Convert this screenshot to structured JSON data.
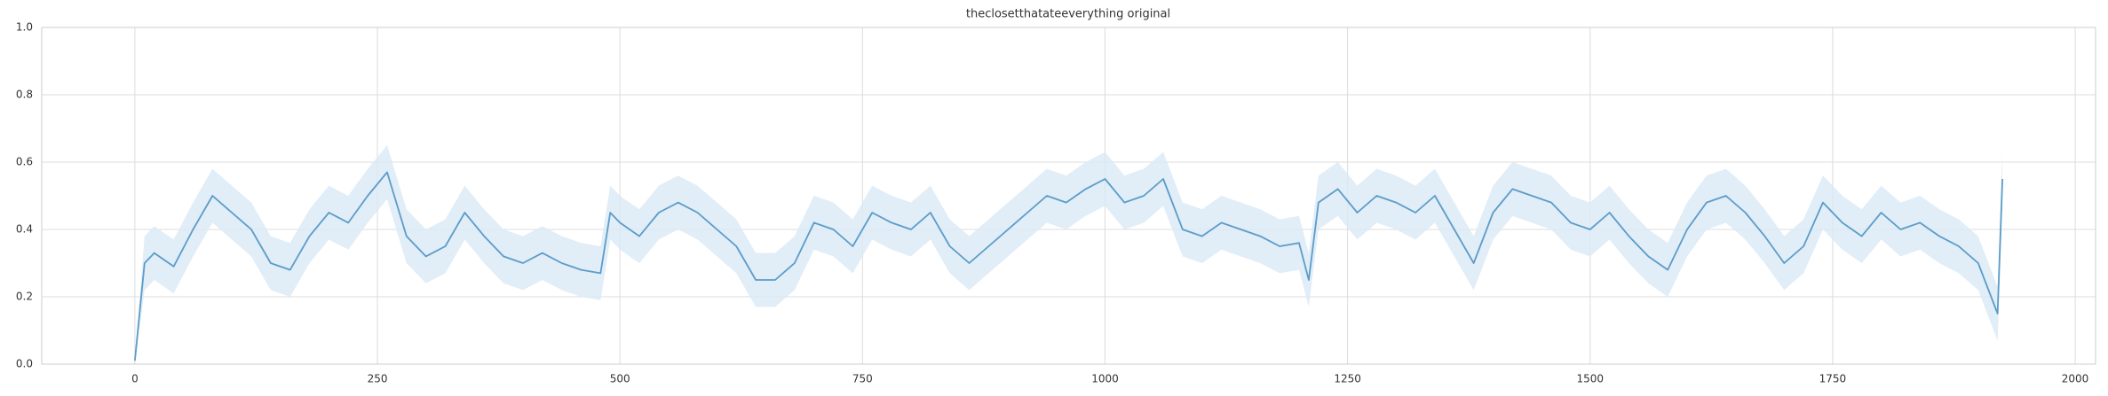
{
  "chart_data": {
    "type": "line",
    "title": "theclosetthatateeverything original",
    "x": [
      0,
      10,
      20,
      40,
      60,
      80,
      100,
      120,
      140,
      160,
      180,
      200,
      220,
      240,
      260,
      280,
      300,
      320,
      340,
      360,
      380,
      400,
      420,
      440,
      460,
      480,
      490,
      500,
      520,
      540,
      560,
      580,
      600,
      620,
      640,
      660,
      680,
      700,
      720,
      740,
      760,
      780,
      800,
      820,
      840,
      860,
      880,
      900,
      920,
      940,
      960,
      980,
      1000,
      1020,
      1040,
      1060,
      1080,
      1100,
      1120,
      1140,
      1160,
      1180,
      1200,
      1210,
      1220,
      1240,
      1260,
      1280,
      1300,
      1320,
      1340,
      1360,
      1380,
      1400,
      1420,
      1440,
      1460,
      1480,
      1500,
      1520,
      1540,
      1560,
      1580,
      1600,
      1620,
      1640,
      1660,
      1680,
      1700,
      1720,
      1740,
      1760,
      1780,
      1800,
      1820,
      1840,
      1860,
      1880,
      1900,
      1920,
      1925
    ],
    "series": [
      {
        "color": "#5b9cc9",
        "band_color": "#d9e8f5",
        "values": [
          0.01,
          0.3,
          0.33,
          0.29,
          0.4,
          0.5,
          0.45,
          0.4,
          0.3,
          0.28,
          0.38,
          0.45,
          0.42,
          0.5,
          0.57,
          0.38,
          0.32,
          0.35,
          0.45,
          0.38,
          0.32,
          0.3,
          0.33,
          0.3,
          0.28,
          0.27,
          0.45,
          0.42,
          0.38,
          0.45,
          0.48,
          0.45,
          0.4,
          0.35,
          0.25,
          0.25,
          0.3,
          0.42,
          0.4,
          0.35,
          0.45,
          0.42,
          0.4,
          0.45,
          0.35,
          0.3,
          0.35,
          0.4,
          0.45,
          0.5,
          0.48,
          0.52,
          0.55,
          0.48,
          0.5,
          0.55,
          0.4,
          0.38,
          0.42,
          0.4,
          0.38,
          0.35,
          0.36,
          0.25,
          0.48,
          0.52,
          0.45,
          0.5,
          0.48,
          0.45,
          0.5,
          0.4,
          0.3,
          0.45,
          0.52,
          0.5,
          0.48,
          0.42,
          0.4,
          0.45,
          0.38,
          0.32,
          0.28,
          0.4,
          0.48,
          0.5,
          0.45,
          0.38,
          0.3,
          0.35,
          0.48,
          0.42,
          0.38,
          0.45,
          0.4,
          0.42,
          0.38,
          0.35,
          0.3,
          0.15,
          0.55
        ],
        "lower": [
          0.0,
          0.22,
          0.25,
          0.21,
          0.32,
          0.42,
          0.37,
          0.32,
          0.22,
          0.2,
          0.3,
          0.37,
          0.34,
          0.42,
          0.49,
          0.3,
          0.24,
          0.27,
          0.37,
          0.3,
          0.24,
          0.22,
          0.25,
          0.22,
          0.2,
          0.19,
          0.37,
          0.34,
          0.3,
          0.37,
          0.4,
          0.37,
          0.32,
          0.27,
          0.17,
          0.17,
          0.22,
          0.34,
          0.32,
          0.27,
          0.37,
          0.34,
          0.32,
          0.37,
          0.27,
          0.22,
          0.27,
          0.32,
          0.37,
          0.42,
          0.4,
          0.44,
          0.47,
          0.4,
          0.42,
          0.47,
          0.32,
          0.3,
          0.34,
          0.32,
          0.3,
          0.27,
          0.28,
          0.17,
          0.4,
          0.44,
          0.37,
          0.42,
          0.4,
          0.37,
          0.42,
          0.32,
          0.22,
          0.37,
          0.44,
          0.42,
          0.4,
          0.34,
          0.32,
          0.37,
          0.3,
          0.24,
          0.2,
          0.32,
          0.4,
          0.42,
          0.37,
          0.3,
          0.22,
          0.27,
          0.4,
          0.34,
          0.3,
          0.37,
          0.32,
          0.34,
          0.3,
          0.27,
          0.22,
          0.07,
          0.47
        ],
        "upper": [
          0.02,
          0.38,
          0.41,
          0.37,
          0.48,
          0.58,
          0.53,
          0.48,
          0.38,
          0.36,
          0.46,
          0.53,
          0.5,
          0.58,
          0.65,
          0.46,
          0.4,
          0.43,
          0.53,
          0.46,
          0.4,
          0.38,
          0.41,
          0.38,
          0.36,
          0.35,
          0.53,
          0.5,
          0.46,
          0.53,
          0.56,
          0.53,
          0.48,
          0.43,
          0.33,
          0.33,
          0.38,
          0.5,
          0.48,
          0.43,
          0.53,
          0.5,
          0.48,
          0.53,
          0.43,
          0.38,
          0.43,
          0.48,
          0.53,
          0.58,
          0.56,
          0.6,
          0.63,
          0.56,
          0.58,
          0.63,
          0.48,
          0.46,
          0.5,
          0.48,
          0.46,
          0.43,
          0.44,
          0.33,
          0.56,
          0.6,
          0.53,
          0.58,
          0.56,
          0.53,
          0.58,
          0.48,
          0.38,
          0.53,
          0.6,
          0.58,
          0.56,
          0.5,
          0.48,
          0.53,
          0.46,
          0.4,
          0.36,
          0.48,
          0.56,
          0.58,
          0.53,
          0.46,
          0.38,
          0.43,
          0.56,
          0.5,
          0.46,
          0.53,
          0.48,
          0.5,
          0.46,
          0.43,
          0.38,
          0.23,
          0.63
        ]
      }
    ],
    "xlim": [
      -96,
      2021
    ],
    "ylim": [
      0,
      1
    ],
    "xticks": [
      0,
      250,
      500,
      750,
      1000,
      1250,
      1500,
      1750,
      2000
    ],
    "yticks": [
      {
        "value": 0,
        "label": "0.0"
      },
      0.2,
      0.4,
      0.6,
      0.8,
      {
        "value": 1,
        "label": "1.0"
      }
    ],
    "grid": true
  }
}
